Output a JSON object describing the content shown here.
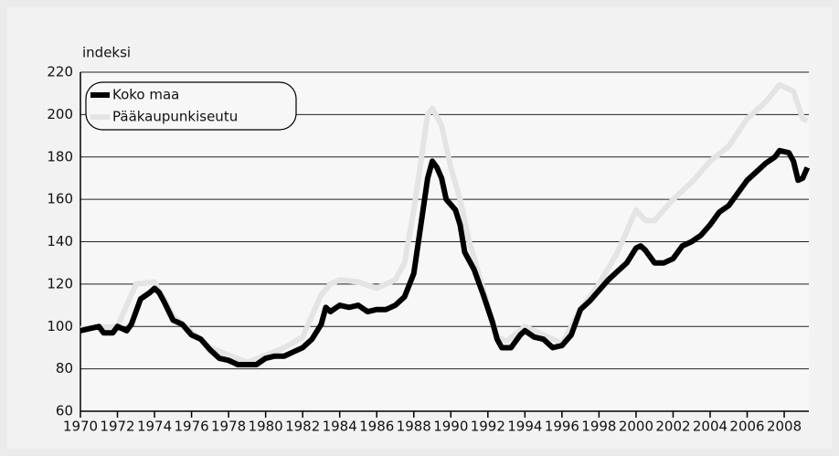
{
  "chart_data": {
    "type": "line",
    "y_label": "indeksi",
    "xlim": [
      1970,
      2009.33
    ],
    "ylim": [
      60,
      220
    ],
    "xticks": [
      1970,
      1972,
      1974,
      1976,
      1978,
      1980,
      1982,
      1984,
      1986,
      1988,
      1990,
      1992,
      1994,
      1996,
      1998,
      2000,
      2002,
      2004,
      2006,
      2008
    ],
    "yticks": [
      60,
      80,
      100,
      120,
      140,
      160,
      180,
      200,
      220
    ],
    "grid": true,
    "legend": "upper left",
    "series": [
      {
        "name": "Pääkaupunkiseutu",
        "color": "#e4e4e4",
        "x": [
          1970,
          1972,
          1973,
          1974,
          1975,
          1977,
          1979,
          1981,
          1982,
          1983,
          1983.5,
          1984,
          1985,
          1986,
          1987,
          1987.5,
          1988,
          1988.5,
          1988.75,
          1989,
          1989.5,
          1990,
          1990.5,
          1991,
          1992,
          1992.5,
          1993,
          1994,
          1995,
          1996,
          1997,
          1998,
          1999,
          2000,
          2000.5,
          2001,
          2002,
          2003,
          2004,
          2005,
          2006,
          2007,
          2007.75,
          2008.5,
          2009,
          2009.25
        ],
        "values": [
          99,
          100,
          120,
          121,
          105,
          90,
          83,
          90,
          95,
          115,
          120,
          122,
          121,
          118,
          122,
          130,
          155,
          185,
          200,
          203,
          195,
          175,
          160,
          140,
          110,
          95,
          93,
          100,
          96,
          92,
          108,
          120,
          135,
          155,
          150,
          150,
          160,
          168,
          178,
          185,
          198,
          206,
          214,
          211,
          198,
          197
        ]
      },
      {
        "name": "Koko maa",
        "color": "#000000",
        "x": [
          1970,
          1970.5,
          1971,
          1971.25,
          1971.75,
          1972,
          1972.5,
          1972.75,
          1973.25,
          1973.75,
          1974,
          1974.25,
          1974.5,
          1975,
          1975.5,
          1976,
          1976.5,
          1977,
          1977.5,
          1978,
          1978.5,
          1979,
          1979.5,
          1980,
          1980.5,
          1981,
          1981.5,
          1982,
          1982.5,
          1983,
          1983.25,
          1983.5,
          1984,
          1984.5,
          1985,
          1985.5,
          1986,
          1986.5,
          1987,
          1987.5,
          1988,
          1988.25,
          1988.5,
          1988.75,
          1989,
          1989.25,
          1989.5,
          1989.75,
          1990.25,
          1990.5,
          1990.75,
          1991.25,
          1991.75,
          1992.25,
          1992.5,
          1992.75,
          1993.25,
          1993.75,
          1994,
          1994.5,
          1995,
          1995.5,
          1996,
          1996.5,
          1997,
          1997.5,
          1998,
          1998.5,
          1999,
          1999.5,
          2000,
          2000.25,
          2000.5,
          2001,
          2001.5,
          2002,
          2002.5,
          2003,
          2003.5,
          2004,
          2004.5,
          2005,
          2005.5,
          2006,
          2006.5,
          2007,
          2007.5,
          2007.75,
          2008.25,
          2008.5,
          2008.75,
          2009,
          2009.25
        ],
        "values": [
          98,
          99,
          100,
          97,
          97,
          100,
          98,
          101,
          113,
          116,
          118,
          116,
          112,
          103,
          101,
          96,
          94,
          89,
          85,
          84,
          82,
          82,
          82,
          85,
          86,
          86,
          88,
          90,
          94,
          101,
          109,
          107,
          110,
          109,
          110,
          107,
          108,
          108,
          110,
          114,
          125,
          140,
          155,
          170,
          178,
          175,
          170,
          160,
          155,
          148,
          135,
          127,
          115,
          102,
          94,
          90,
          90,
          96,
          98,
          95,
          94,
          90,
          91,
          96,
          108,
          112,
          117,
          122,
          126,
          130,
          137,
          138,
          136,
          130,
          130,
          132,
          138,
          140,
          143,
          148,
          154,
          157,
          163,
          169,
          173,
          177,
          180,
          183,
          182,
          178,
          169,
          170,
          175
        ]
      }
    ]
  }
}
